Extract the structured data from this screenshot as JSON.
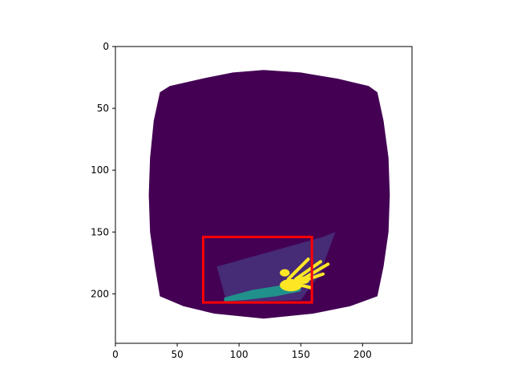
{
  "chart_data": {
    "type": "heatmap",
    "title": "",
    "xlabel": "",
    "ylabel": "",
    "xlim": [
      0,
      240
    ],
    "ylim": [
      240,
      0
    ],
    "x_ticks": [
      0,
      50,
      100,
      150,
      200
    ],
    "y_ticks": [
      0,
      50,
      100,
      150,
      200
    ],
    "x_tick_labels": [
      "0",
      "50",
      "100",
      "150",
      "200"
    ],
    "y_tick_labels": [
      "0",
      "50",
      "100",
      "150",
      "200"
    ],
    "colormap": "viridis",
    "colors": {
      "background_region": "#ffffff",
      "mask_region": "#440154",
      "low": "#46327e",
      "mid": "#21918c",
      "high": "#fde725",
      "bounding_box": "#ff0000"
    },
    "mask_outline": [
      [
        120,
        19
      ],
      [
        150,
        21
      ],
      [
        180,
        26
      ],
      [
        205,
        32
      ],
      [
        212,
        37
      ],
      [
        217,
        60
      ],
      [
        221,
        90
      ],
      [
        222,
        120
      ],
      [
        221,
        150
      ],
      [
        217,
        178
      ],
      [
        212,
        202
      ],
      [
        190,
        210
      ],
      [
        160,
        216
      ],
      [
        120,
        220
      ],
      [
        80,
        216
      ],
      [
        55,
        210
      ],
      [
        36,
        202
      ],
      [
        32,
        178
      ],
      [
        28,
        150
      ],
      [
        27,
        120
      ],
      [
        28,
        90
      ],
      [
        31,
        60
      ],
      [
        36,
        37
      ],
      [
        44,
        32
      ],
      [
        70,
        26
      ],
      [
        95,
        21
      ]
    ],
    "bounding_box": {
      "x_min": 71,
      "y_min": 154,
      "x_max": 159,
      "y_max": 207
    },
    "bright_object": {
      "wedge": [
        [
          82,
          178
        ],
        [
          168,
          154
        ],
        [
          178,
          150
        ],
        [
          165,
          185
        ],
        [
          150,
          205
        ],
        [
          90,
          207
        ]
      ],
      "arm": [
        [
          88,
          203
        ],
        [
          110,
          197
        ],
        [
          135,
          193
        ],
        [
          150,
          195
        ],
        [
          150,
          198
        ],
        [
          130,
          202
        ],
        [
          105,
          205
        ],
        [
          88,
          206
        ]
      ],
      "hand_blobs": [
        {
          "cx": 142,
          "cy": 193,
          "rx": 9,
          "ry": 5
        },
        {
          "cx": 152,
          "cy": 189,
          "rx": 5,
          "ry": 3
        },
        {
          "cx": 137,
          "cy": 183,
          "rx": 4,
          "ry": 3
        }
      ],
      "fingers": [
        {
          "from": [
            140,
            188
          ],
          "to": [
            156,
            172
          ]
        },
        {
          "from": [
            146,
            188
          ],
          "to": [
            166,
            174
          ]
        },
        {
          "from": [
            150,
            189
          ],
          "to": [
            172,
            176
          ]
        },
        {
          "from": [
            148,
            191
          ],
          "to": [
            168,
            184
          ]
        },
        {
          "from": [
            150,
            193
          ],
          "to": [
            158,
            195
          ]
        }
      ]
    }
  }
}
